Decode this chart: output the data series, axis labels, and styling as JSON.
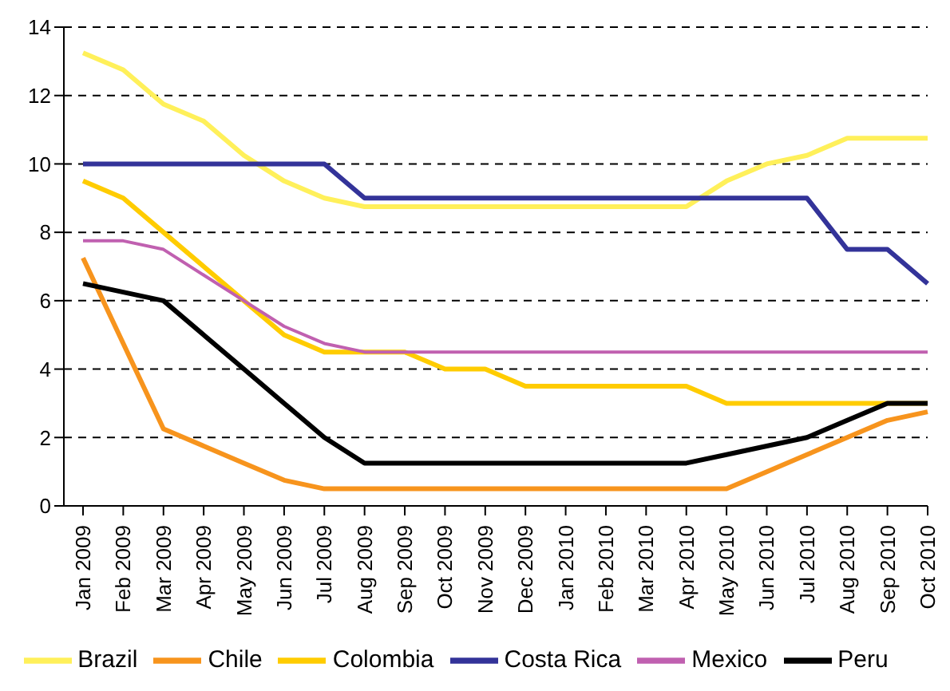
{
  "chart_data": {
    "type": "line",
    "categories": [
      "Jan 2009",
      "Feb 2009",
      "Mar 2009",
      "Apr 2009",
      "May 2009",
      "Jun 2009",
      "Jul 2009",
      "Aug 2009",
      "Sep 2009",
      "Oct 2009",
      "Nov 2009",
      "Dec 2009",
      "Jan 2010",
      "Feb 2010",
      "Mar 2010",
      "Apr 2010",
      "May 2010",
      "Jun 2010",
      "Jul 2010",
      "Aug 2010",
      "Sep 2010",
      "Oct 2010"
    ],
    "series": [
      {
        "name": "Brazil",
        "color": "#fff05a",
        "values": [
          13.25,
          12.75,
          11.75,
          11.25,
          10.25,
          9.5,
          9.0,
          8.75,
          8.75,
          8.75,
          8.75,
          8.75,
          8.75,
          8.75,
          8.75,
          8.75,
          9.5,
          10.0,
          10.25,
          10.75,
          10.75,
          10.75
        ]
      },
      {
        "name": "Chile",
        "color": "#f7941d",
        "values": [
          7.25,
          4.75,
          2.25,
          1.75,
          1.25,
          0.75,
          0.5,
          0.5,
          0.5,
          0.5,
          0.5,
          0.5,
          0.5,
          0.5,
          0.5,
          0.5,
          0.5,
          1.0,
          1.5,
          2.0,
          2.5,
          2.75
        ]
      },
      {
        "name": "Colombia",
        "color": "#ffcc00",
        "values": [
          9.5,
          9.0,
          8.0,
          7.0,
          6.0,
          5.0,
          4.5,
          4.5,
          4.5,
          4.0,
          4.0,
          3.5,
          3.5,
          3.5,
          3.5,
          3.5,
          3.0,
          3.0,
          3.0,
          3.0,
          3.0,
          3.0
        ]
      },
      {
        "name": "Costa Rica",
        "color": "#333399",
        "values": [
          10,
          10,
          10,
          10,
          10,
          10,
          10,
          9,
          9,
          9,
          9,
          9,
          9,
          9,
          9,
          9,
          9,
          9,
          9,
          7.5,
          7.5,
          6.5
        ]
      },
      {
        "name": "Mexico",
        "color": "#c060b0",
        "values": [
          7.75,
          7.75,
          7.5,
          6.75,
          6.0,
          5.25,
          4.75,
          4.5,
          4.5,
          4.5,
          4.5,
          4.5,
          4.5,
          4.5,
          4.5,
          4.5,
          4.5,
          4.5,
          4.5,
          4.5,
          4.5,
          4.5
        ]
      },
      {
        "name": "Peru",
        "color": "#000000",
        "values": [
          6.5,
          6.25,
          6.0,
          5.0,
          4.0,
          3.0,
          2.0,
          1.25,
          1.25,
          1.25,
          1.25,
          1.25,
          1.25,
          1.25,
          1.25,
          1.25,
          1.5,
          1.75,
          2.0,
          2.5,
          3.0,
          3.0
        ]
      }
    ],
    "ylim": [
      0,
      14
    ],
    "yticks": [
      0,
      2,
      4,
      6,
      8,
      10,
      12,
      14
    ],
    "grid": "y",
    "legend": "bottom",
    "marker": "none",
    "line_style": "solid"
  }
}
